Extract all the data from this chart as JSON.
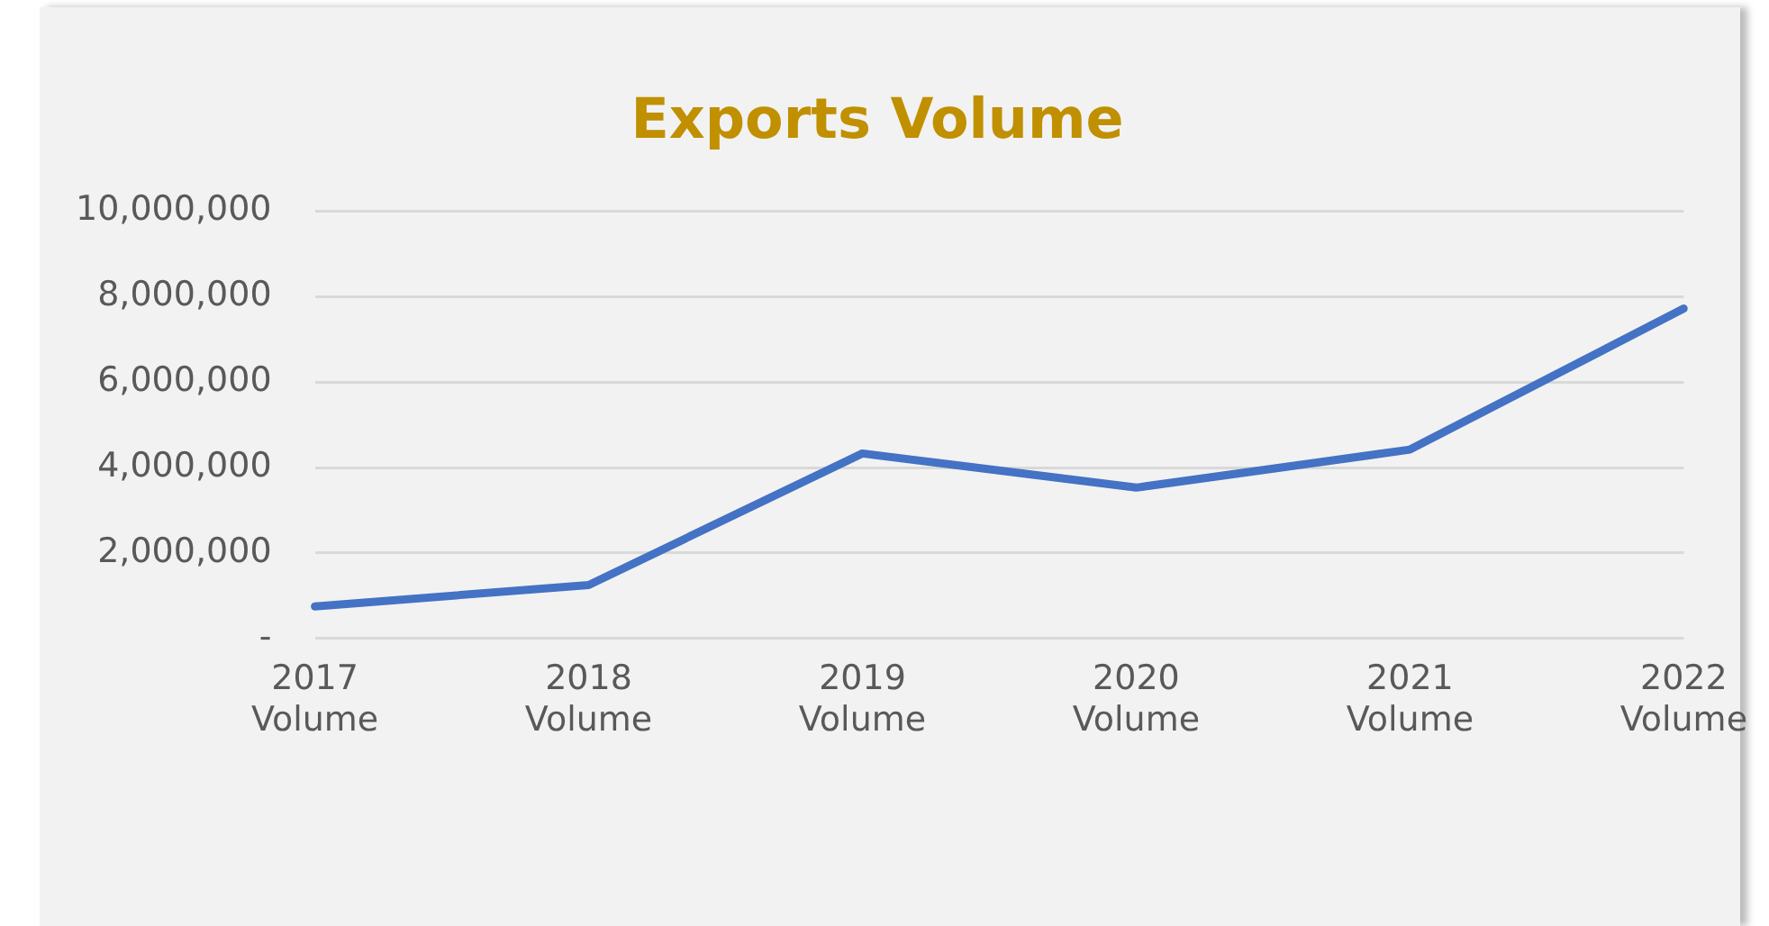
{
  "chart_data": {
    "type": "line",
    "title": "Exports Volume",
    "categories": [
      "2017 Volume",
      "2018 Volume",
      "2019 Volume",
      "2020 Volume",
      "2021 Volume",
      "2022 Volume"
    ],
    "series": [
      {
        "color": "#4472c4",
        "values": [
          750000,
          1250000,
          4330000,
          3530000,
          4420000,
          7720000
        ]
      }
    ],
    "ylim": [
      0,
      10000000
    ],
    "yticks": [
      {
        "value": 0,
        "label": "-"
      },
      {
        "value": 2000000,
        "label": "2,000,000"
      },
      {
        "value": 4000000,
        "label": "4,000,000"
      },
      {
        "value": 6000000,
        "label": "6,000,000"
      },
      {
        "value": 8000000,
        "label": "8,000,000"
      },
      {
        "value": 10000000,
        "label": "10,000,000"
      }
    ],
    "grid": "y",
    "legend": false,
    "marker": "none",
    "line_style": "solid"
  }
}
